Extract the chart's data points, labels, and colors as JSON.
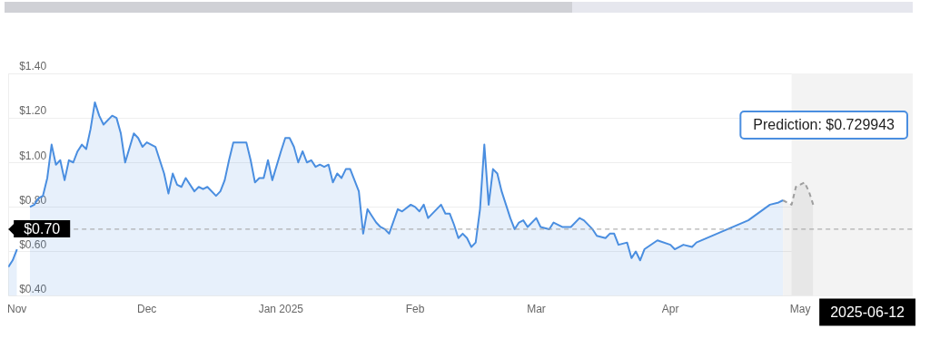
{
  "chart_data": {
    "type": "area",
    "xlim": [
      "2024-10-30",
      "2025-05-27"
    ],
    "xticks": [
      {
        "value": "2024-11-01",
        "label": "Nov"
      },
      {
        "value": "2024-12-01",
        "label": "Dec"
      },
      {
        "value": "2025-01-01",
        "label": "Jan 2025"
      },
      {
        "value": "2025-02-01",
        "label": "Feb"
      },
      {
        "value": "2025-03-01",
        "label": "Mar"
      },
      {
        "value": "2025-04-01",
        "label": "Apr"
      },
      {
        "value": "2025-05-01",
        "label": "May"
      }
    ],
    "ylim": [
      0.4,
      1.4
    ],
    "yticks": [
      {
        "value": 0.4,
        "label": "$0.40"
      },
      {
        "value": 0.6,
        "label": "$0.60"
      },
      {
        "value": 0.8,
        "label": "$0.80"
      },
      {
        "value": 1.0,
        "label": "$1.00"
      },
      {
        "value": 1.2,
        "label": "$1.20"
      },
      {
        "value": 1.4,
        "label": "$1.40"
      }
    ],
    "grid": "y",
    "series": [
      {
        "color": "#4a8ee0",
        "x": [
          "2024-10-30",
          "2024-10-31",
          "2024-11-01",
          "2024-11-02",
          "2024-11-04",
          "2024-11-05",
          "2024-11-06",
          "2024-11-07",
          "2024-11-08",
          "2024-11-09",
          "2024-11-10",
          "2024-11-11",
          "2024-11-12",
          "2024-11-13",
          "2024-11-14",
          "2024-11-15",
          "2024-11-16",
          "2024-11-17",
          "2024-11-18",
          "2024-11-19",
          "2024-11-20",
          "2024-11-21",
          "2024-11-23",
          "2024-11-24",
          "2024-11-25",
          "2024-11-26",
          "2024-11-28",
          "2024-11-29",
          "2024-11-30",
          "2024-12-01",
          "2024-12-03",
          "2024-12-04",
          "2024-12-05",
          "2024-12-06",
          "2024-12-07",
          "2024-12-08",
          "2024-12-09",
          "2024-12-10",
          "2024-12-12",
          "2024-12-13",
          "2024-12-14",
          "2024-12-15",
          "2024-12-17",
          "2024-12-18",
          "2024-12-19",
          "2024-12-20",
          "2024-12-21",
          "2024-12-22",
          "2024-12-24",
          "2024-12-25",
          "2024-12-26",
          "2024-12-27",
          "2024-12-28",
          "2024-12-29",
          "2024-12-30",
          "2025-01-01",
          "2025-01-02",
          "2025-01-03",
          "2025-01-04",
          "2025-01-05",
          "2025-01-06",
          "2025-01-07",
          "2025-01-08",
          "2025-01-09",
          "2025-01-10",
          "2025-01-11",
          "2025-01-12",
          "2025-01-13",
          "2025-01-14",
          "2025-01-15",
          "2025-01-16",
          "2025-01-17",
          "2025-01-19",
          "2025-01-20",
          "2025-01-21",
          "2025-01-22",
          "2025-01-23",
          "2025-01-24",
          "2025-01-25",
          "2025-01-26",
          "2025-01-28",
          "2025-01-29",
          "2025-01-31",
          "2025-02-01",
          "2025-02-02",
          "2025-02-03",
          "2025-02-04",
          "2025-02-07",
          "2025-02-08",
          "2025-02-09",
          "2025-02-10",
          "2025-02-11",
          "2025-02-12",
          "2025-02-13",
          "2025-02-14",
          "2025-02-15",
          "2025-02-16",
          "2025-02-17",
          "2025-02-18",
          "2025-02-19",
          "2025-02-20",
          "2025-02-21",
          "2025-02-22",
          "2025-02-23",
          "2025-02-24",
          "2025-02-25",
          "2025-02-26",
          "2025-02-27",
          "2025-03-01",
          "2025-03-02",
          "2025-03-04",
          "2025-03-05",
          "2025-03-07",
          "2025-03-09",
          "2025-03-11",
          "2025-03-12",
          "2025-03-14",
          "2025-03-15",
          "2025-03-17",
          "2025-03-18",
          "2025-03-19",
          "2025-03-20",
          "2025-03-22",
          "2025-03-23",
          "2025-03-24",
          "2025-03-25",
          "2025-03-26",
          "2025-03-29",
          "2025-04-01",
          "2025-04-02",
          "2025-04-04",
          "2025-04-06",
          "2025-04-07",
          "2025-04-13",
          "2025-04-19",
          "2025-04-24",
          "2025-04-26",
          "2025-04-27"
        ],
        "values": [
          0.53,
          0.56,
          0.61,
          null,
          0.8,
          0.81,
          0.84,
          0.85,
          0.93,
          1.08,
          0.99,
          1.01,
          0.92,
          1.01,
          1.0,
          1.05,
          1.08,
          1.06,
          1.15,
          1.27,
          1.21,
          1.17,
          1.21,
          1.2,
          1.13,
          1.0,
          1.13,
          1.11,
          1.07,
          1.09,
          1.07,
          1.01,
          0.95,
          0.86,
          0.95,
          0.9,
          0.89,
          0.93,
          0.87,
          0.89,
          0.88,
          0.89,
          0.85,
          0.87,
          0.92,
          1.01,
          1.09,
          1.09,
          1.09,
          1.01,
          0.91,
          0.93,
          0.93,
          1.01,
          0.92,
          1.05,
          1.11,
          1.11,
          1.07,
          1.0,
          1.05,
          1.0,
          1.01,
          0.98,
          0.99,
          0.98,
          0.99,
          0.91,
          0.95,
          0.93,
          0.97,
          0.97,
          0.87,
          0.68,
          0.79,
          0.76,
          0.73,
          0.71,
          0.7,
          0.68,
          0.79,
          0.78,
          0.81,
          0.8,
          0.78,
          0.81,
          0.75,
          0.81,
          0.77,
          0.77,
          0.72,
          0.66,
          0.68,
          0.66,
          0.62,
          0.64,
          0.79,
          1.08,
          0.81,
          0.97,
          0.95,
          0.87,
          0.81,
          0.75,
          0.7,
          0.73,
          0.74,
          0.71,
          0.75,
          0.71,
          0.7,
          0.73,
          0.71,
          0.71,
          0.75,
          0.74,
          0.7,
          0.67,
          0.66,
          0.68,
          0.68,
          0.63,
          0.64,
          0.57,
          0.6,
          0.56,
          0.61,
          0.65,
          0.63,
          0.61,
          0.63,
          0.62,
          0.64,
          0.69,
          0.74,
          0.81,
          0.82,
          0.83
        ]
      },
      {
        "color": "#9e9e9e",
        "line_style": "dashed",
        "x": [
          "2025-04-27",
          "2025-04-29",
          "2025-04-30",
          "2025-05-02",
          "2025-05-03",
          "2025-05-04"
        ],
        "values": [
          0.83,
          0.81,
          0.89,
          0.91,
          0.87,
          0.81
        ]
      }
    ],
    "bands": [
      {
        "axis": "x",
        "from": "2025-04-29",
        "to": "2025-05-27",
        "color": "#f3f3f3"
      }
    ],
    "ref_lines": [
      {
        "axis": "y",
        "value": 0.7,
        "label": "$0.70",
        "color": "#9e9e9e",
        "line_style": "dashed"
      }
    ],
    "annotations": [
      "Prediction: $0.729943",
      "2025-06-12"
    ]
  }
}
